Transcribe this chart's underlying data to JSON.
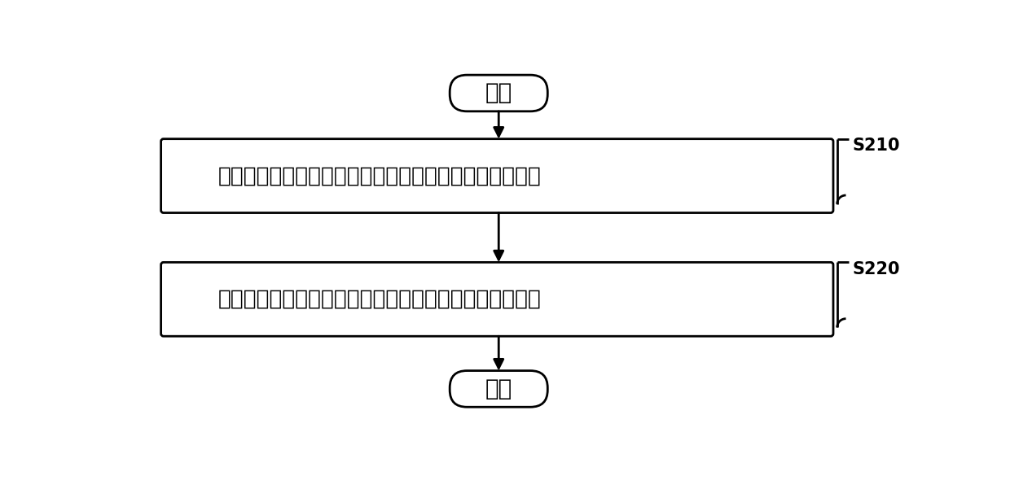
{
  "bg_color": "#ffffff",
  "text_color": "#000000",
  "start_label": "开始",
  "end_label": "结束",
  "box1_label": "当所述风力发电机组待机时，获取预估的启动风向的信息",
  "box2_label": "根据所述启动风向调整所述风力发电机组的起始偏航位置",
  "step1_label": "S210",
  "step2_label": "S220",
  "fig_width": 12.4,
  "fig_height": 6.01,
  "dpi": 100
}
